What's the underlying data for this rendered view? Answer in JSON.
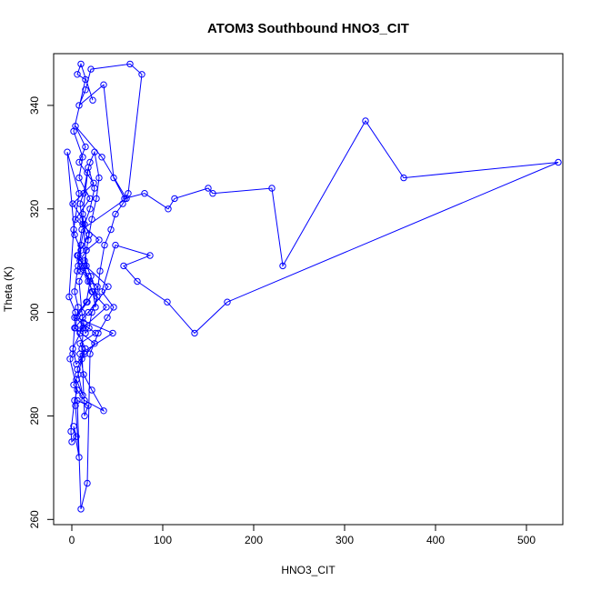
{
  "chart_data": {
    "type": "scatter",
    "mode": "lines+markers",
    "title": "ATOM3 Southbound HNO3_CIT",
    "xlabel": "HNO3_CIT",
    "ylabel": "Theta (K)",
    "xlim": [
      -20,
      540
    ],
    "ylim": [
      259,
      350
    ],
    "xticks": [
      0,
      100,
      200,
      300,
      400,
      500
    ],
    "yticks": [
      260,
      280,
      300,
      320,
      340
    ],
    "color": "#0000ff",
    "grid": false,
    "series": [
      {
        "x": [
          23,
          10,
          6,
          15,
          2,
          12,
          8,
          20,
          4,
          30,
          16,
          9,
          40,
          18,
          3,
          25,
          11,
          7,
          2,
          14,
          35,
          22,
          13,
          9,
          45,
          5,
          17,
          28,
          10,
          6,
          19,
          12,
          1,
          24,
          8,
          15,
          4,
          33,
          60,
          11,
          7,
          20,
          16,
          3,
          26,
          9,
          14,
          5,
          1,
          12,
          38,
          22,
          18,
          7,
          10,
          3,
          -5,
          8,
          2,
          -3,
          4,
          1,
          -2,
          6,
          3,
          -1,
          0,
          5,
          2,
          8,
          4,
          5,
          12,
          6,
          15,
          4,
          7,
          3,
          6,
          10,
          14,
          20,
          25,
          18,
          12,
          16,
          8,
          11,
          15,
          19,
          22,
          28,
          21,
          14,
          18,
          12,
          9,
          13,
          17,
          20,
          25,
          30,
          27,
          22,
          19,
          16,
          14,
          18,
          23,
          26,
          31,
          36,
          43,
          48,
          56,
          62,
          77,
          64,
          21,
          15,
          8,
          35,
          46,
          58,
          80,
          106,
          113,
          150,
          155,
          220,
          232,
          323,
          365,
          535,
          171,
          135,
          105,
          72,
          57,
          86,
          48,
          33,
          46,
          39,
          29,
          20,
          17,
          10,
          6,
          18,
          14,
          11,
          13,
          9,
          12
        ],
        "y": [
          341,
          348,
          346,
          345,
          335,
          330,
          326,
          322,
          318,
          314,
          312,
          310,
          305,
          300,
          297,
          294,
          291,
          288,
          286,
          283,
          281,
          285,
          288,
          292,
          296,
          299,
          302,
          305,
          308,
          311,
          315,
          318,
          321,
          325,
          329,
          332,
          336,
          330,
          322,
          316,
          311,
          306,
          302,
          299,
          296,
          294,
          292,
          290,
          293,
          297,
          301,
          304,
          307,
          309,
          312,
          315,
          331,
          323,
          316,
          303,
          300,
          292,
          291,
          285,
          283,
          277,
          275,
          276,
          278,
          272,
          282,
          287,
          284,
          289,
          293,
          297,
          301,
          304,
          308,
          313,
          317,
          320,
          324,
          328,
          319,
          309,
          306,
          300,
          296,
          297,
          300,
          303,
          307,
          310,
          314,
          317,
          321,
          323,
          327,
          329,
          331,
          326,
          322,
          318,
          315,
          312,
          309,
          306,
          304,
          301,
          308,
          313,
          316,
          319,
          321,
          323,
          346,
          348,
          347,
          343,
          340,
          344,
          326,
          322,
          323,
          320,
          322,
          324,
          323,
          324,
          309,
          337,
          326,
          329,
          302,
          296,
          302,
          306,
          309,
          311,
          313,
          304,
          301,
          299,
          296,
          292,
          267,
          262,
          283,
          282,
          280,
          293,
          298,
          296,
          299
        ]
      }
    ]
  }
}
